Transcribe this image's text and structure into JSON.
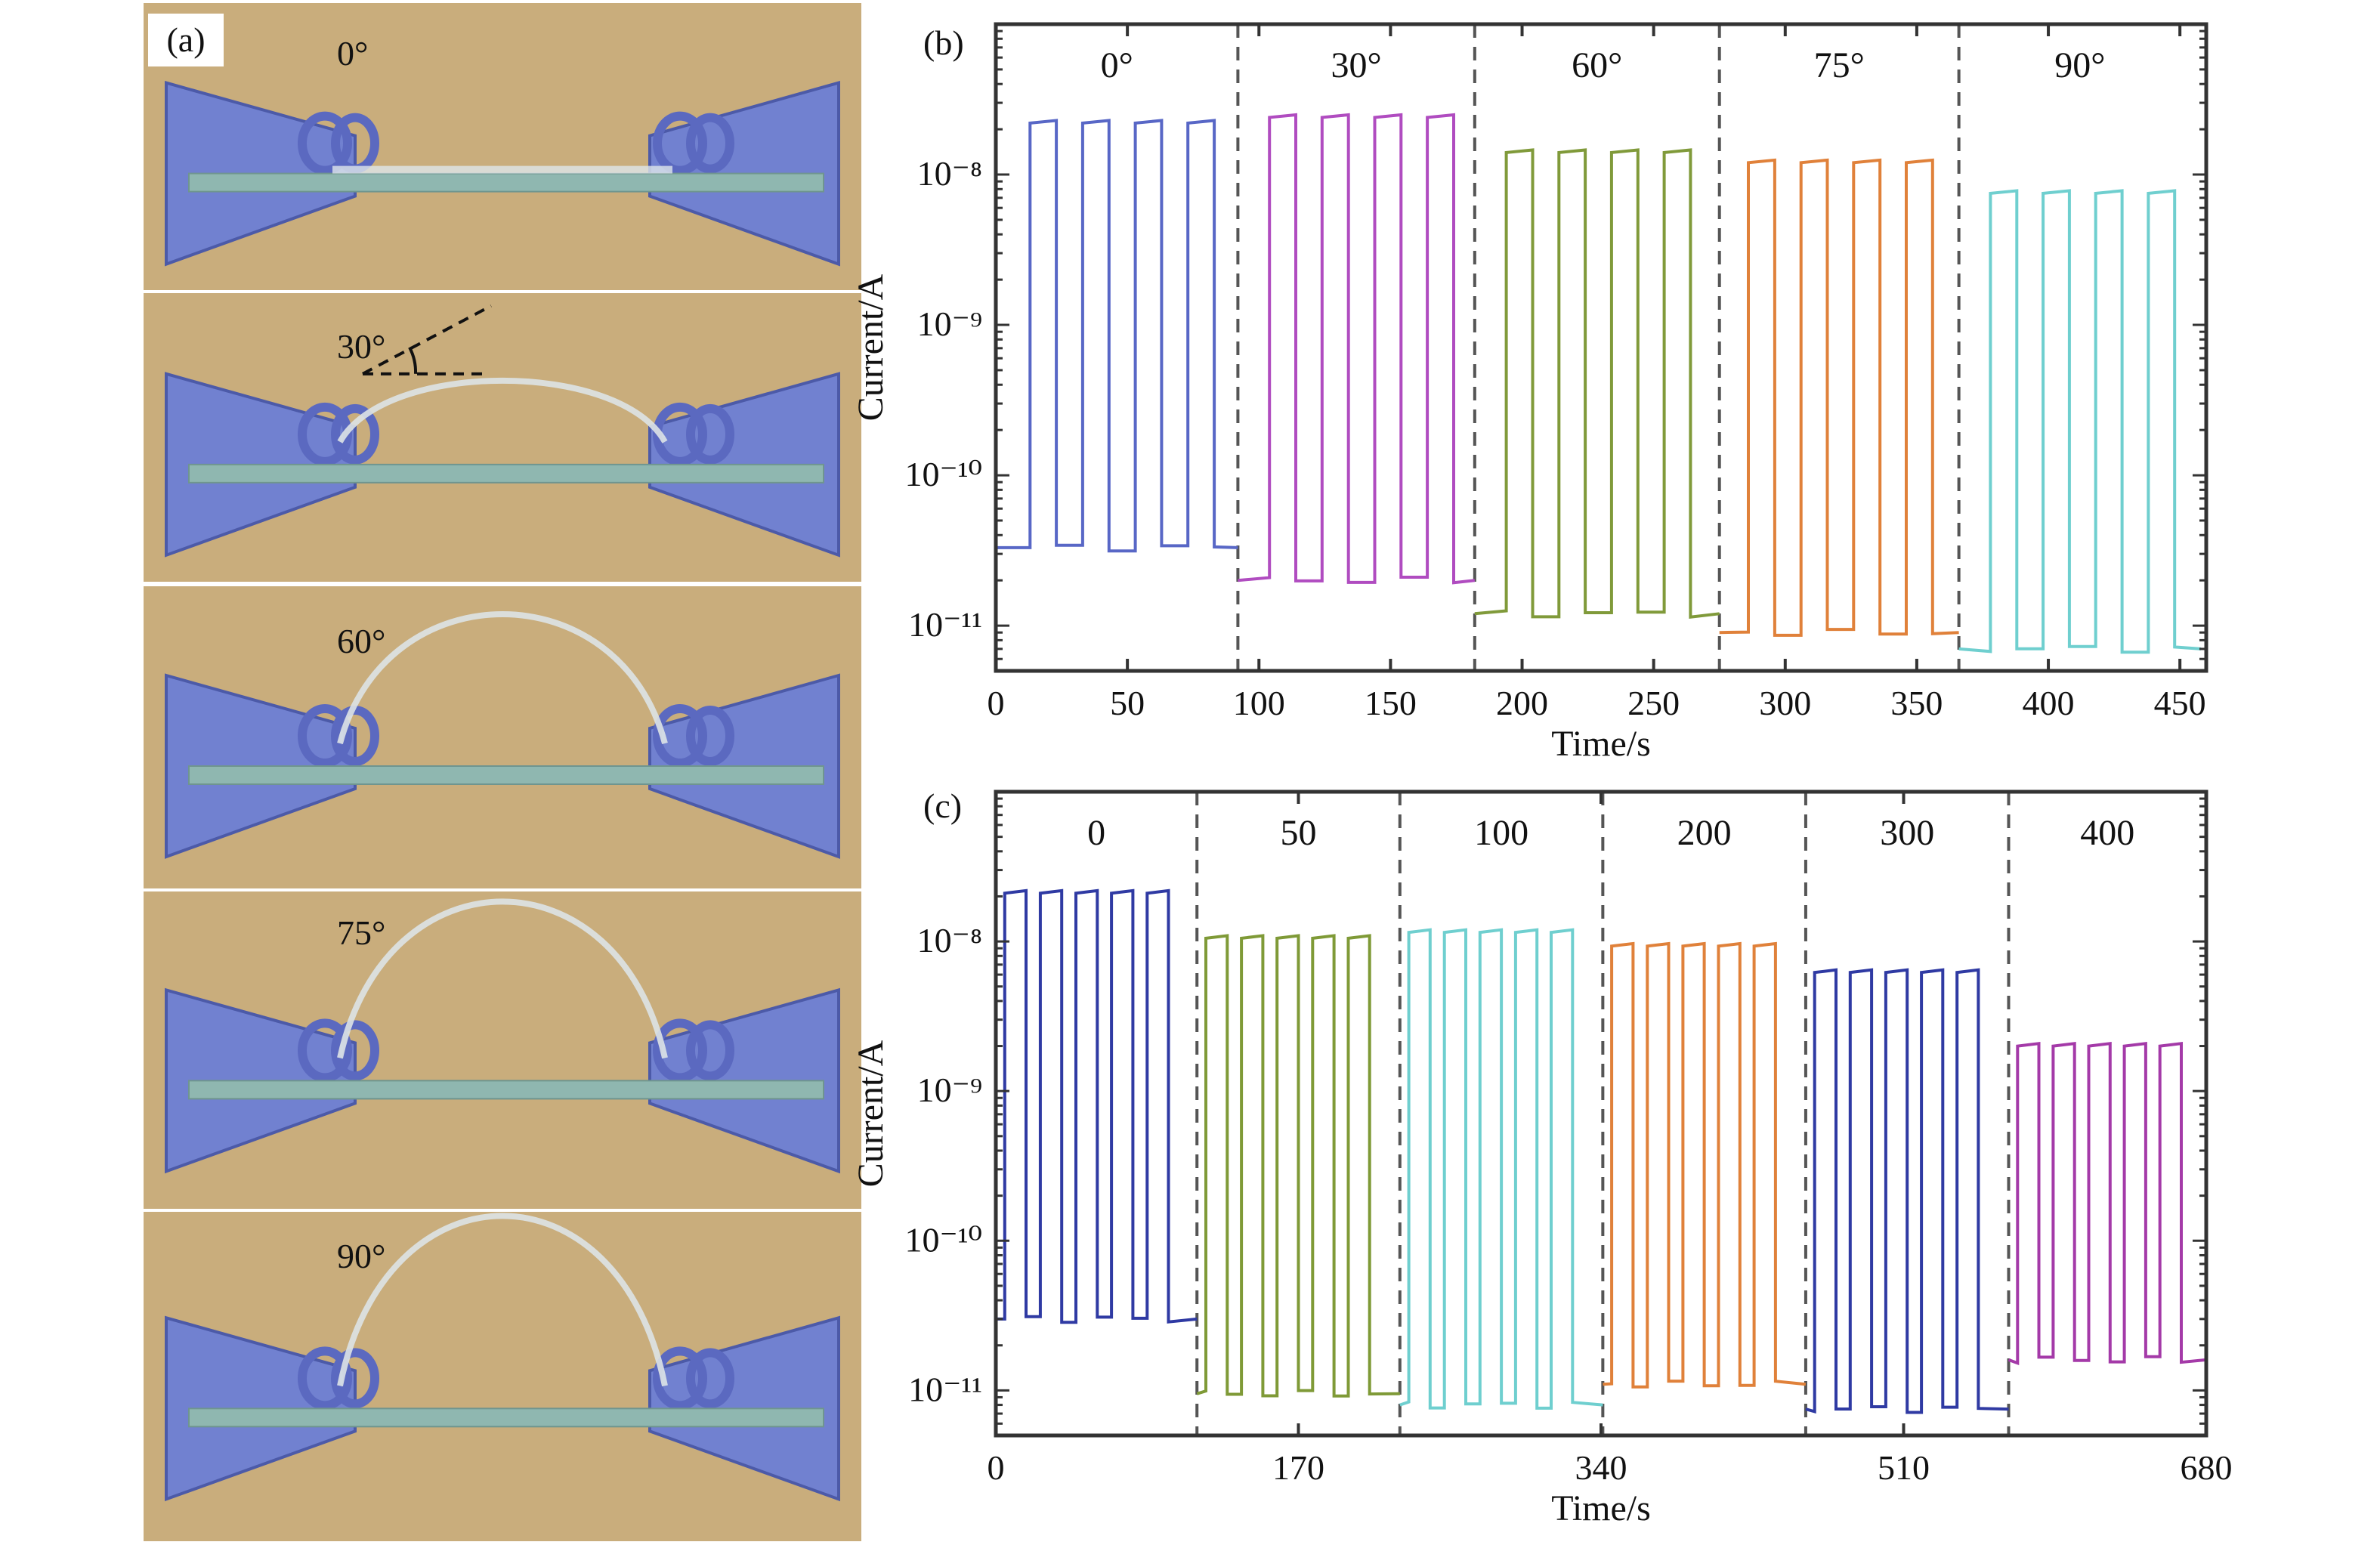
{
  "panel_a": {
    "label": "(a)",
    "photos": [
      {
        "angle": "0°"
      },
      {
        "angle": "30°"
      },
      {
        "angle": "60°"
      },
      {
        "angle": "75°"
      },
      {
        "angle": "90°"
      }
    ],
    "colors": {
      "background": "#c9ad7c",
      "clip": "#7181d0",
      "glass": "#8fb7b0"
    }
  },
  "chart_data": [
    {
      "panel": "(b)",
      "type": "line",
      "xlabel": "Time/s",
      "ylabel": "Current/A",
      "yscale": "log",
      "xlim": [
        0,
        460
      ],
      "ylim": [
        5e-12,
        1e-07
      ],
      "xticks": [
        "0",
        "50",
        "100",
        "150",
        "200",
        "250",
        "300",
        "350",
        "400",
        "450"
      ],
      "xtick_values": [
        0,
        50,
        100,
        150,
        200,
        250,
        300,
        350,
        400,
        450
      ],
      "yticks": [
        "10⁻¹¹",
        "10⁻¹⁰",
        "10⁻⁹",
        "10⁻⁸"
      ],
      "ytick_values": [
        1e-11,
        1e-10,
        1e-09,
        1e-08
      ],
      "dividers": [
        92,
        182,
        275,
        366
      ],
      "series": [
        {
          "name": "0°",
          "color": "#5867c6",
          "t_start": 0,
          "t_end": 92,
          "on_times": [
            [
              13,
              23
            ],
            [
              33,
              43
            ],
            [
              53,
              63
            ],
            [
              73,
              83
            ]
          ],
          "i_on": 2.2e-08,
          "i_off": 3.3e-11
        },
        {
          "name": "30°",
          "color": "#b04cc0",
          "t_start": 92,
          "t_end": 182,
          "on_times": [
            [
              104,
              114
            ],
            [
              124,
              134
            ],
            [
              144,
              154
            ],
            [
              164,
              174
            ]
          ],
          "i_on": 2.4e-08,
          "i_off": 2e-11
        },
        {
          "name": "60°",
          "color": "#809a3a",
          "t_start": 182,
          "t_end": 275,
          "on_times": [
            [
              194,
              204
            ],
            [
              214,
              224
            ],
            [
              234,
              244
            ],
            [
              254,
              264
            ]
          ],
          "i_on": 1.4e-08,
          "i_off": 1.2e-11
        },
        {
          "name": "75°",
          "color": "#e0813a",
          "t_start": 275,
          "t_end": 366,
          "on_times": [
            [
              286,
              296
            ],
            [
              306,
              316
            ],
            [
              326,
              336
            ],
            [
              346,
              356
            ]
          ],
          "i_on": 1.2e-08,
          "i_off": 9e-12
        },
        {
          "name": "90°",
          "color": "#6fcfcf",
          "t_start": 366,
          "t_end": 458,
          "on_times": [
            [
              378,
              388
            ],
            [
              398,
              408
            ],
            [
              418,
              428
            ],
            [
              438,
              448
            ]
          ],
          "i_on": 7.5e-09,
          "i_off": 7e-12
        }
      ]
    },
    {
      "panel": "(c)",
      "type": "line",
      "xlabel": "Time/s",
      "ylabel": "Current/A",
      "yscale": "log",
      "xlim": [
        0,
        680
      ],
      "ylim": [
        5e-12,
        1e-07
      ],
      "xticks": [
        "0",
        "170",
        "340",
        "510",
        "680"
      ],
      "xtick_values": [
        0,
        170,
        340,
        510,
        680
      ],
      "yticks": [
        "10⁻¹¹",
        "10⁻¹⁰",
        "10⁻⁹",
        "10⁻⁸"
      ],
      "ytick_values": [
        1e-11,
        1e-10,
        1e-09,
        1e-08
      ],
      "dividers": [
        113,
        227,
        341,
        455,
        569
      ],
      "series": [
        {
          "name": "0",
          "color": "#2f3aa3",
          "t_start": 0,
          "t_end": 113,
          "on_times": [
            [
              5,
              17
            ],
            [
              25,
              37
            ],
            [
              45,
              57
            ],
            [
              65,
              77
            ],
            [
              85,
              97
            ]
          ],
          "i_on": 2.1e-08,
          "i_off": 3e-11
        },
        {
          "name": "50",
          "color": "#7f9a37",
          "t_start": 113,
          "t_end": 227,
          "on_times": [
            [
              118,
              130
            ],
            [
              138,
              150
            ],
            [
              158,
              170
            ],
            [
              178,
              190
            ],
            [
              198,
              210
            ]
          ],
          "i_on": 1.05e-08,
          "i_off": 9.5e-12
        },
        {
          "name": "100",
          "color": "#6fcfcf",
          "t_start": 227,
          "t_end": 341,
          "on_times": [
            [
              232,
              244
            ],
            [
              252,
              264
            ],
            [
              272,
              284
            ],
            [
              292,
              304
            ],
            [
              312,
              324
            ]
          ],
          "i_on": 1.15e-08,
          "i_off": 8e-12
        },
        {
          "name": "200",
          "color": "#e0813a",
          "t_start": 341,
          "t_end": 455,
          "on_times": [
            [
              346,
              358
            ],
            [
              366,
              378
            ],
            [
              386,
              398
            ],
            [
              406,
              418
            ],
            [
              426,
              438
            ]
          ],
          "i_on": 9.3e-09,
          "i_off": 1.1e-11
        },
        {
          "name": "300",
          "color": "#2f3aa3",
          "t_start": 455,
          "t_end": 569,
          "on_times": [
            [
              460,
              472
            ],
            [
              480,
              492
            ],
            [
              500,
              512
            ],
            [
              520,
              532
            ],
            [
              540,
              552
            ]
          ],
          "i_on": 6.2e-09,
          "i_off": 7.5e-12
        },
        {
          "name": "400",
          "color": "#a43aa8",
          "t_start": 569,
          "t_end": 680,
          "on_times": [
            [
              574,
              586
            ],
            [
              594,
              606
            ],
            [
              614,
              626
            ],
            [
              634,
              646
            ],
            [
              654,
              666
            ]
          ],
          "i_on": 2e-09,
          "i_off": 1.6e-11
        }
      ]
    }
  ]
}
